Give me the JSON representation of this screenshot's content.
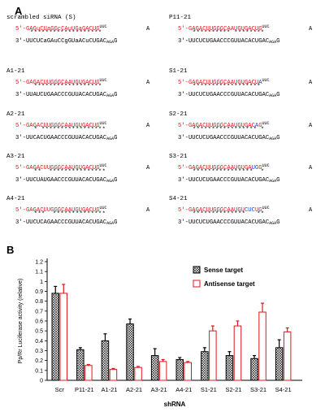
{
  "panel_a_label": "A",
  "panel_b_label": "B",
  "prime5": "5′-",
  "prime3": "3′-",
  "loop_top": "UUC",
  "loop_right": "A",
  "loop_bottom": "AGA",
  "loop_end": "G",
  "constructs": [
    {
      "name": "scrambled siRNA (S)",
      "s5": "GAGuCUaGGcCAuUGaGACUG",
      "stars": "*******************",
      "s3": "UUCUCaGAuCCgGUaACuCUGAC"
    },
    {
      "name": "A1-21",
      "s5": "GAGACUUGGGCAAUGUGACUG",
      "stars": " ******************",
      "s3": "UUAUCUGAACCCGUUACACUGAC"
    },
    {
      "name": "A2-21",
      "s5": "GAGACUUGGGCAAUGUGACUG",
      "stars": " * *****************",
      "s3": "UUCACUGAACCCGUUACACUGAC"
    },
    {
      "name": "A3-21",
      "s5": "GAGACUUGGGCAAUGUGACUG",
      "stars": " **  ***************",
      "s3": "UUCUAUGAACCCGUUACACUGAC"
    },
    {
      "name": "A4-21",
      "s5": "GAGACUUGGGCAAUGUGACUG",
      "stars": " ***  **************",
      "s3": "UUCUCAGAACCCGUUACACUGAC"
    },
    {
      "name": "P11-21",
      "s5": "GAGACUUGGGCAAUGUGACUG",
      "stars": "********** ********",
      "s3": "UUCUCUGAACCCGUUACACUGAC"
    },
    {
      "name": "S1-21",
      "s5": "GAGACUUGGGCAAUGUGACUA",
      "stars": "****************** ",
      "s3": "UUCUCUGAACCCGUUACACUGAC"
    },
    {
      "name": "S2-21",
      "s5": "GAGACUUGGGCAAUGUGACAG",
      "stars": "***************** *",
      "s3": "UUCUCUGAACCCGUUACACUGAC"
    },
    {
      "name": "S3-21",
      "s5": "GAGACUUGGGCAAUGUGAUGG",
      "stars": "****************  *",
      "s3": "UUCUCUGAACCCGUUACACUGAC"
    },
    {
      "name": "S4-21",
      "s5": "GAGACUUGGGCAAUGUCUCUG",
      "stars": "**************   **",
      "s3": "UUCUCUGAACCCGUUACACUGAC"
    }
  ],
  "chart_data": {
    "type": "bar",
    "ylabel": "Pp/Rr Luciferase activity (relative)",
    "xlabel": "shRNA",
    "yticks": [
      "0",
      "0.1",
      "0.2",
      "0.3",
      "0.4",
      "0.5",
      "0.6",
      "0.7",
      "0.8",
      "0.9",
      "1",
      "1.1",
      "1.2"
    ],
    "ylim": [
      0,
      1.2
    ],
    "categories": [
      "Scr",
      "P11-21",
      "A1-21",
      "A2-21",
      "A3-21",
      "A4-21",
      "S1-21",
      "S2-21",
      "S3-21",
      "S4-21"
    ],
    "legend_position": "top-right",
    "series": [
      {
        "name": "Sense target",
        "color": "#000000",
        "values": [
          0.88,
          0.31,
          0.4,
          0.57,
          0.25,
          0.21,
          0.29,
          0.25,
          0.22,
          0.33
        ],
        "errors": [
          0.07,
          0.02,
          0.07,
          0.05,
          0.07,
          0.02,
          0.04,
          0.04,
          0.03,
          0.08
        ]
      },
      {
        "name": "Antisense target",
        "color": "#e0161b",
        "values": [
          0.88,
          0.15,
          0.11,
          0.13,
          0.19,
          0.18,
          0.5,
          0.55,
          0.69,
          0.49
        ],
        "errors": [
          0.09,
          0.01,
          0.01,
          0.01,
          0.02,
          0.01,
          0.05,
          0.05,
          0.09,
          0.04
        ]
      }
    ]
  }
}
